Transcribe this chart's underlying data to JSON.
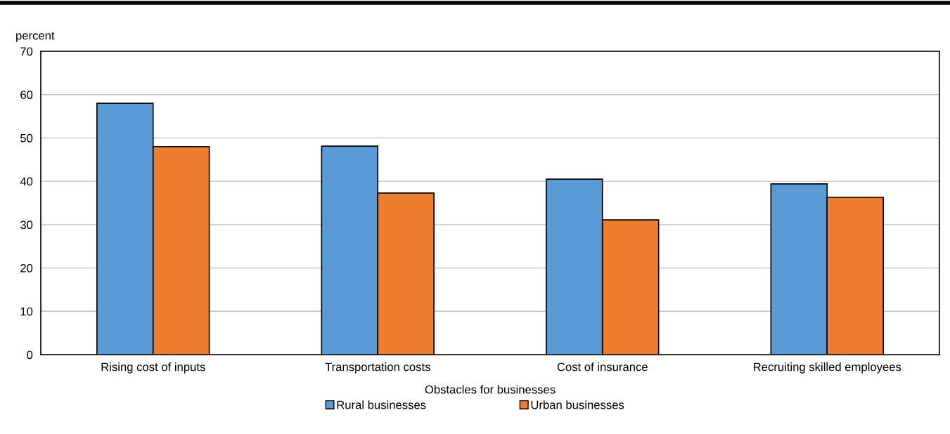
{
  "chart_data": {
    "type": "bar",
    "ylabel": "percent",
    "xlabel": "Obstacles for businesses",
    "categories": [
      "Rising cost of inputs",
      "Transportation costs",
      "Cost of insurance",
      "Recruiting skilled employees"
    ],
    "series": [
      {
        "name": "Rural businesses",
        "color": "#5b9bd5",
        "values": [
          58.0,
          48.1,
          40.5,
          39.4
        ]
      },
      {
        "name": "Urban businesses",
        "color": "#ed7d31",
        "values": [
          48.0,
          37.3,
          31.1,
          36.3
        ]
      }
    ],
    "ylim": [
      0,
      70
    ],
    "yticks": [
      0,
      10,
      20,
      30,
      40,
      50,
      60,
      70
    ],
    "grid": "y",
    "legend": "bottom"
  }
}
